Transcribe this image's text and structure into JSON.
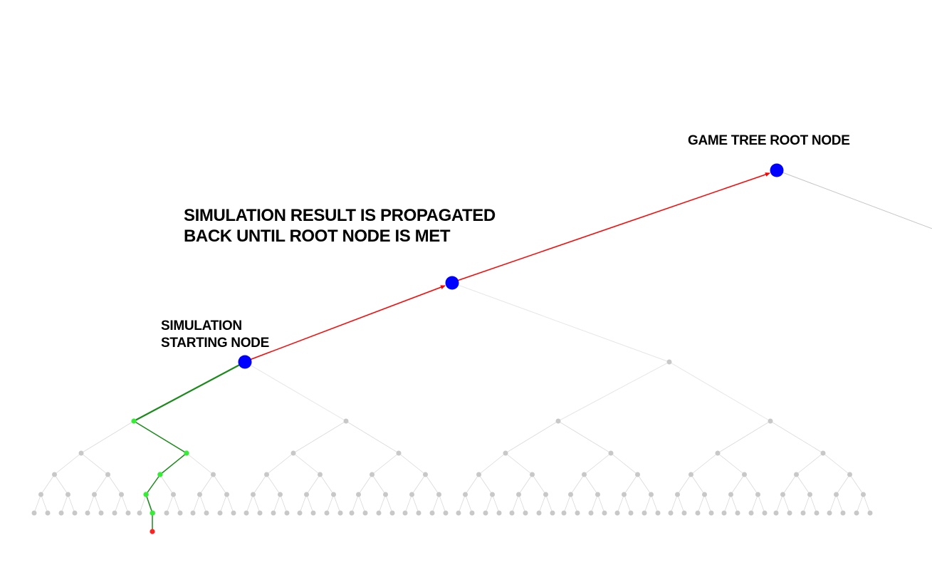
{
  "labels": {
    "root_node": "GAME TREE ROOT NODE",
    "propagation_line1": "SIMULATION RESULT IS  PROPAGATED",
    "propagation_line2": "BACK UNTIL ROOT NODE IS MET",
    "sim_start_line1": "SIMULATION",
    "sim_start_line2": "STARTING NODE"
  },
  "colors": {
    "selected_node": "#0000ff",
    "backprop_edge": "#ff0000",
    "simulation_path": "#1a8a1a",
    "simulation_node": "#33ee33",
    "terminal_node": "#ff2222",
    "tree_node": "#c8c8c8",
    "tree_edge": "#d9d9d9"
  }
}
